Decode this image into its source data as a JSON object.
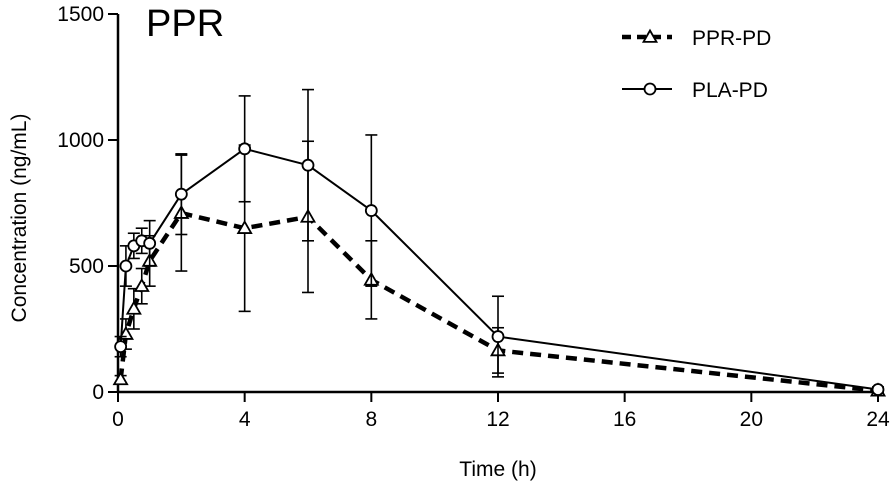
{
  "chart_data": {
    "type": "line",
    "title": "PPR",
    "xlabel": "Time (h)",
    "ylabel": "Concentration (ng/mL)",
    "xlim": [
      0,
      24
    ],
    "ylim": [
      0,
      1500
    ],
    "x_ticks": [
      0,
      4,
      8,
      12,
      16,
      20,
      24
    ],
    "y_ticks": [
      0,
      500,
      1000,
      1500
    ],
    "grid": false,
    "legend_position": "top-right",
    "series": [
      {
        "name": "PPR-PD",
        "marker": "triangle",
        "line_style": "dashed",
        "color": "#000000",
        "x": [
          0.083,
          0.25,
          0.5,
          0.75,
          1,
          2,
          4,
          6,
          8,
          12,
          24
        ],
        "y": [
          50,
          230,
          330,
          420,
          520,
          710,
          650,
          695,
          445,
          165,
          5
        ],
        "err": [
          15,
          60,
          80,
          70,
          100,
          230,
          330,
          300,
          155,
          90,
          5
        ]
      },
      {
        "name": "PLA-PD",
        "marker": "circle",
        "line_style": "solid",
        "color": "#000000",
        "x": [
          0.083,
          0.25,
          0.5,
          0.75,
          1,
          2,
          4,
          6,
          8,
          12,
          24
        ],
        "y": [
          180,
          500,
          580,
          600,
          590,
          785,
          965,
          900,
          720,
          220,
          10
        ],
        "err": [
          40,
          80,
          50,
          50,
          90,
          160,
          210,
          300,
          300,
          160,
          10
        ]
      }
    ]
  }
}
